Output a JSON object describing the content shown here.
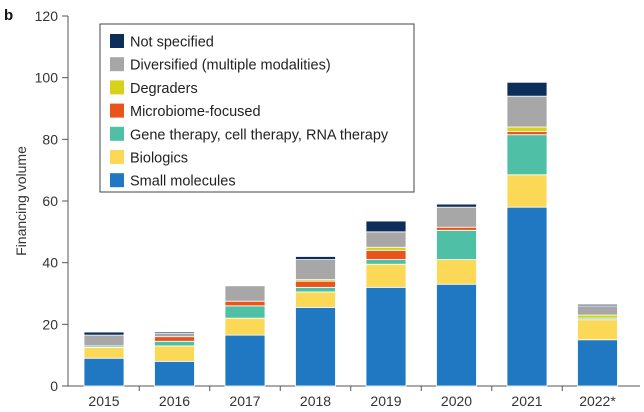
{
  "panel_label": "b",
  "chart_data": {
    "type": "bar",
    "stacked": true,
    "ylabel": "Financing volume",
    "xlabel": "",
    "ylim": [
      0,
      120
    ],
    "yticks": [
      0,
      20,
      40,
      60,
      80,
      100,
      120
    ],
    "categories": [
      "2015",
      "2016",
      "2017",
      "2018",
      "2019",
      "2020",
      "2021",
      "2022*"
    ],
    "series": [
      {
        "name": "Small molecules",
        "color": "#1f78c1",
        "values": [
          9,
          8,
          16.5,
          25.5,
          32,
          33,
          58,
          15
        ]
      },
      {
        "name": "Biologics",
        "color": "#fcd857",
        "values": [
          3.5,
          5,
          5.5,
          5,
          7.5,
          8,
          10.5,
          6.5
        ]
      },
      {
        "name": "Gene therapy, cell therapy, RNA therapy",
        "color": "#4fbfa5",
        "values": [
          0.5,
          1.5,
          4,
          1.5,
          1.5,
          9.5,
          13,
          0.5
        ]
      },
      {
        "name": "Microbiome-focused",
        "color": "#e8541c",
        "values": [
          0,
          1.5,
          1.5,
          2,
          3,
          1,
          1,
          0
        ]
      },
      {
        "name": "Degraders",
        "color": "#d8d11c",
        "values": [
          0,
          0,
          0,
          0.5,
          1,
          0,
          1.5,
          1
        ]
      },
      {
        "name": "Diversified (multiple modalities)",
        "color": "#a7a7a7",
        "values": [
          3.5,
          1,
          5,
          6.5,
          5,
          6.5,
          10,
          3
        ]
      },
      {
        "name": "Not specified",
        "color": "#0c2e58",
        "values": [
          1,
          0.5,
          0,
          1,
          3.5,
          1,
          4.5,
          0.5
        ]
      }
    ],
    "legend_order": [
      "Not specified",
      "Diversified (multiple modalities)",
      "Degraders",
      "Microbiome-focused",
      "Gene therapy, cell therapy, RNA therapy",
      "Biologics",
      "Small molecules"
    ],
    "legend_position": "top-left",
    "grid": false
  }
}
